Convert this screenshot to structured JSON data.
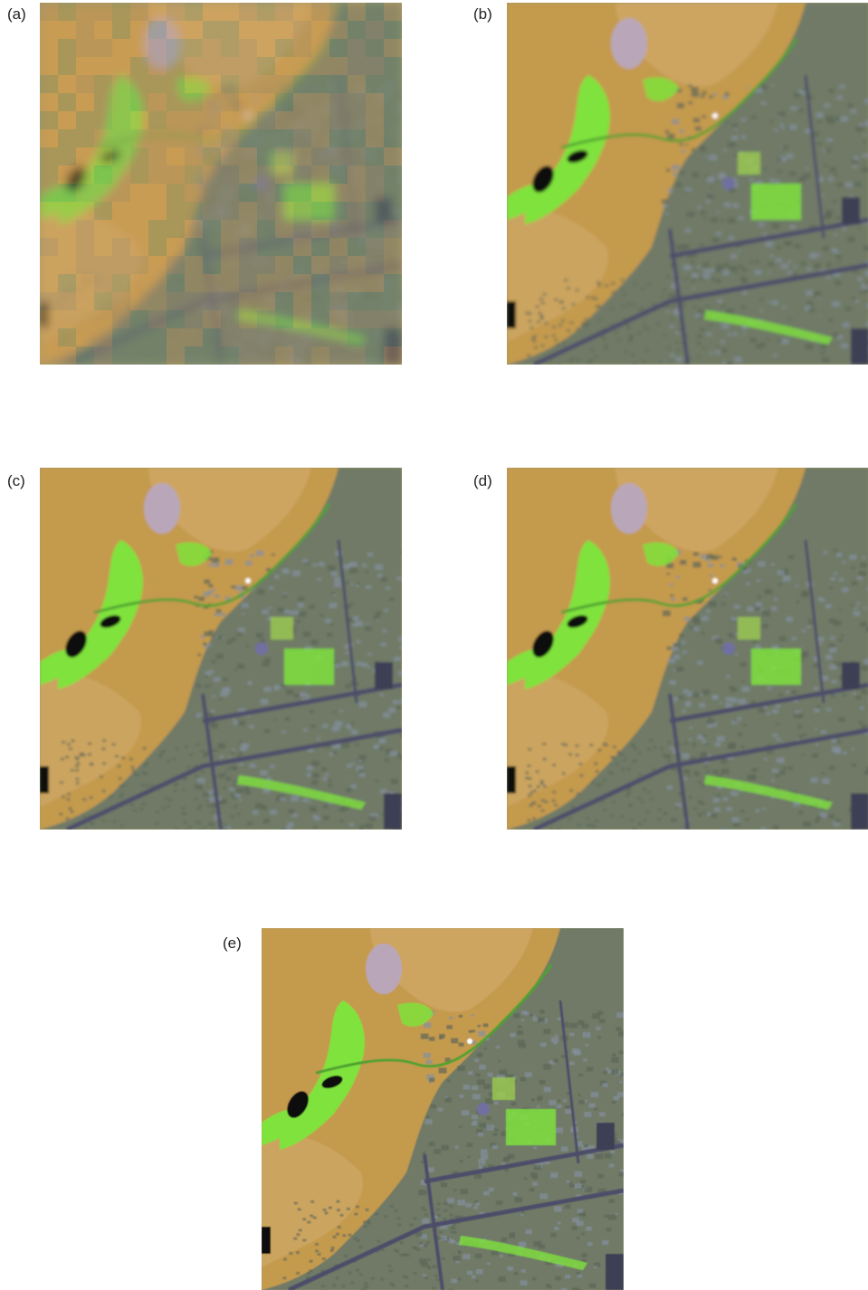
{
  "panels": [
    {
      "id": "a",
      "label": "(a)",
      "blur": 5,
      "pixel": 20
    },
    {
      "id": "b",
      "label": "(b)",
      "blur": 1.6,
      "pixel": 0
    },
    {
      "id": "c",
      "label": "(c)",
      "blur": 1.2,
      "pixel": 0
    },
    {
      "id": "d",
      "label": "(d)",
      "blur": 1.2,
      "pixel": 0
    },
    {
      "id": "e",
      "label": "(e)",
      "blur": 0.5,
      "pixel": 0
    }
  ],
  "colors": {
    "hills": "#c49a4e",
    "hills_light": "#cfa866",
    "urban": "#6f7a66",
    "urban_dark": "#5c6658",
    "vegetation": "#7fe23c",
    "water": "#111111",
    "road": "#4d4e6a",
    "bare": "#b9a7b9"
  }
}
